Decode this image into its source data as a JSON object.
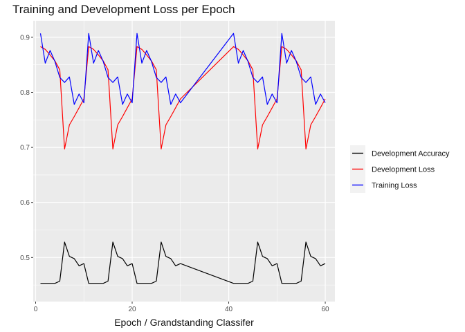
{
  "chart_data": {
    "type": "line",
    "title": "Training and Development Loss per Epoch",
    "xlabel": "Epoch / Grandstanding Classifer",
    "ylabel": "",
    "xlim": [
      -0.5,
      62.0
    ],
    "ylim": [
      0.42,
      0.93
    ],
    "xticks": [
      0,
      20,
      40,
      60
    ],
    "yticks": [
      0.5,
      0.6,
      0.7,
      0.8,
      0.9
    ],
    "grid": true,
    "legend_position": "right",
    "series": [
      {
        "name": "Development Accuracy",
        "color": "#000000",
        "x": [
          1,
          2,
          3,
          4,
          5,
          6,
          7,
          8,
          9,
          10,
          11,
          12,
          13,
          14,
          15,
          16,
          17,
          18,
          19,
          20,
          21,
          22,
          23,
          24,
          25,
          26,
          27,
          28,
          29,
          30,
          41,
          42,
          43,
          44,
          45,
          46,
          47,
          48,
          49,
          50,
          51,
          52,
          53,
          54,
          55,
          56,
          57,
          58,
          59,
          60
        ],
        "values": [
          0.453,
          0.453,
          0.453,
          0.453,
          0.457,
          0.528,
          0.502,
          0.498,
          0.485,
          0.489,
          0.453,
          0.453,
          0.453,
          0.453,
          0.457,
          0.528,
          0.502,
          0.498,
          0.485,
          0.489,
          0.453,
          0.453,
          0.453,
          0.453,
          0.457,
          0.528,
          0.502,
          0.498,
          0.485,
          0.489,
          0.453,
          0.453,
          0.453,
          0.453,
          0.457,
          0.528,
          0.502,
          0.498,
          0.485,
          0.489,
          0.453,
          0.453,
          0.453,
          0.453,
          0.457,
          0.528,
          0.502,
          0.498,
          0.485,
          0.489
        ]
      },
      {
        "name": "Development Loss",
        "color": "#ff0000",
        "x": [
          1,
          2,
          3,
          4,
          5,
          6,
          7,
          8,
          9,
          10,
          11,
          12,
          13,
          14,
          15,
          16,
          17,
          18,
          19,
          20,
          21,
          22,
          23,
          24,
          25,
          26,
          27,
          28,
          29,
          30,
          41,
          42,
          43,
          44,
          45,
          46,
          47,
          48,
          49,
          50,
          51,
          52,
          53,
          54,
          55,
          56,
          57,
          58,
          59,
          60
        ],
        "values": [
          0.883,
          0.878,
          0.868,
          0.857,
          0.841,
          0.697,
          0.741,
          0.756,
          0.772,
          0.788,
          0.883,
          0.878,
          0.868,
          0.857,
          0.841,
          0.697,
          0.741,
          0.756,
          0.772,
          0.788,
          0.883,
          0.878,
          0.868,
          0.857,
          0.841,
          0.697,
          0.741,
          0.756,
          0.772,
          0.788,
          0.883,
          0.878,
          0.868,
          0.857,
          0.841,
          0.697,
          0.741,
          0.756,
          0.772,
          0.788,
          0.883,
          0.878,
          0.868,
          0.857,
          0.841,
          0.697,
          0.741,
          0.756,
          0.772,
          0.788
        ]
      },
      {
        "name": "Training Loss",
        "color": "#0000ff",
        "x": [
          1,
          2,
          3,
          4,
          5,
          6,
          7,
          8,
          9,
          10,
          11,
          12,
          13,
          14,
          15,
          16,
          17,
          18,
          19,
          20,
          21,
          22,
          23,
          24,
          25,
          26,
          27,
          28,
          29,
          30,
          41,
          42,
          43,
          44,
          45,
          46,
          47,
          48,
          49,
          50,
          51,
          52,
          53,
          54,
          55,
          56,
          57,
          58,
          59,
          60
        ],
        "values": [
          0.907,
          0.853,
          0.876,
          0.856,
          0.827,
          0.818,
          0.828,
          0.778,
          0.797,
          0.781,
          0.907,
          0.853,
          0.876,
          0.856,
          0.827,
          0.818,
          0.828,
          0.778,
          0.797,
          0.781,
          0.907,
          0.853,
          0.876,
          0.856,
          0.827,
          0.818,
          0.828,
          0.778,
          0.797,
          0.781,
          0.907,
          0.853,
          0.876,
          0.856,
          0.827,
          0.818,
          0.828,
          0.778,
          0.797,
          0.781,
          0.907,
          0.853,
          0.876,
          0.856,
          0.827,
          0.818,
          0.828,
          0.778,
          0.797,
          0.781
        ]
      }
    ]
  }
}
